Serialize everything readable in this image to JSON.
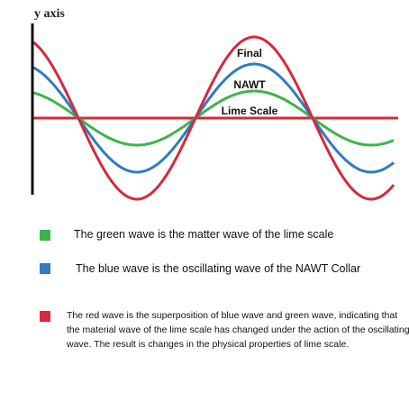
{
  "figure": {
    "y_axis_title": "y axis",
    "wave_labels": {
      "final": "Final",
      "nawt": "NAWT",
      "lime_scale": "Lime Scale"
    },
    "waves": [
      {
        "id": "green",
        "color": "#3cb44b",
        "amplitude": 0.3
      },
      {
        "id": "blue",
        "color": "#2f7cc0",
        "amplitude": 0.6
      },
      {
        "id": "red",
        "color": "#d42a3c",
        "amplitude": 0.9
      }
    ],
    "baseline_color": "#d42a3c",
    "axis_color": "#111111"
  },
  "legend": {
    "green": {
      "color": "#3cb44b",
      "text": "The green wave is the matter wave of the lime scale"
    },
    "blue": {
      "color": "#2f7cc0",
      "text": "The blue wave is the oscillating wave of the NAWT Collar"
    },
    "red": {
      "color": "#d42a3c",
      "text": "The red wave is the superposition of blue wave and green wave, indicating that the material wave of the lime scale has changed under the action of the oscillating wave. The result is changes in the physical properties of lime scale."
    }
  }
}
